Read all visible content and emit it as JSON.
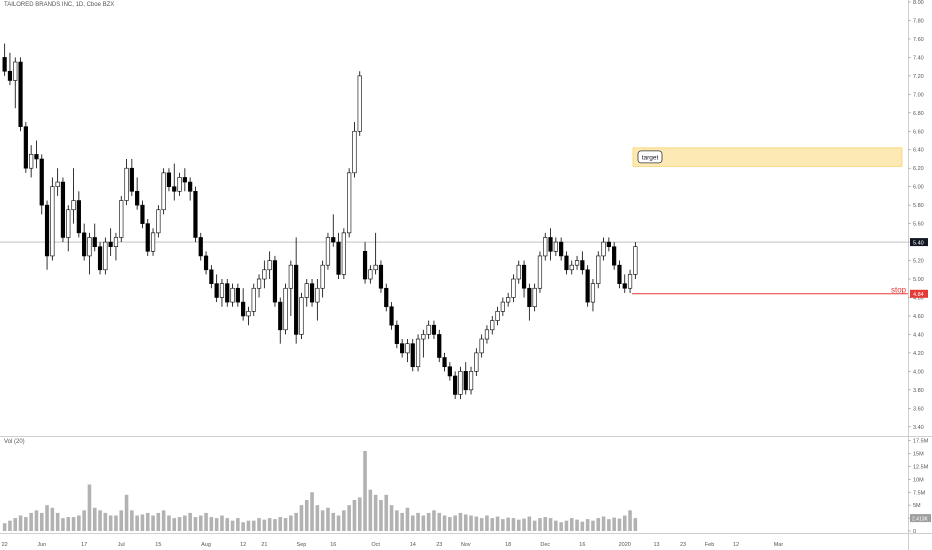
{
  "header": {
    "title": "TAILORED BRANDS INC, 1D, Cboe BZX",
    "volume_label": "Vol (20)"
  },
  "annotations": {
    "target_label": "target",
    "stop_label": "stop",
    "current_price_label": "5.40",
    "stop_price_label": "4.84",
    "current_volume_label": "2.413K"
  },
  "colors": {
    "up_candle": "#ffffff",
    "down_candle": "#000000",
    "candle_outline": "#000000",
    "volume_bar": "#b2b2b2",
    "target_zone_fill": "#fde9b3",
    "target_zone_border": "#f5c542",
    "stop_line": "#e53935",
    "price_line": "#9e9e9e"
  },
  "chart_data": {
    "type": "candlestick",
    "title": "TAILORED BRANDS INC, 1D, Cboe BZX",
    "price_axis": {
      "ylim": [
        3.3,
        8.0
      ],
      "ticks": [
        "8.00",
        "7.80",
        "7.60",
        "7.40",
        "7.20",
        "7.00",
        "6.80",
        "6.60",
        "6.40",
        "6.20",
        "6.00",
        "5.80",
        "5.60",
        "5.40",
        "5.20",
        "5.00",
        "4.80",
        "4.60",
        "4.40",
        "4.20",
        "4.00",
        "3.80",
        "3.60",
        "3.40"
      ]
    },
    "volume_axis": {
      "ylim": [
        0,
        18
      ],
      "ticks": [
        "17.5M",
        "15M",
        "12.5M",
        "10M",
        "7.5M",
        "5M",
        "2.5M",
        "0"
      ],
      "tick_values": [
        17.5,
        15,
        12.5,
        10,
        7.5,
        5,
        2.5,
        0
      ]
    },
    "x_axis": {
      "labels": [
        "22",
        "Jun",
        "17",
        "Jul",
        "15",
        "Aug",
        "12",
        "21",
        "Sep",
        "16",
        "Oct",
        "14",
        "23",
        "Nov",
        "18",
        "Dec",
        "16",
        "2020",
        "13",
        "23",
        "Feb",
        "12",
        "Mar"
      ],
      "label_index": [
        0,
        7,
        15,
        22,
        29,
        38,
        45,
        49,
        56,
        62,
        70,
        77,
        82,
        87,
        95,
        102,
        109,
        117,
        123,
        128,
        133,
        138,
        146
      ]
    },
    "levels": {
      "current_price": 5.4,
      "stop": 4.84,
      "target_zone": [
        6.22,
        6.42
      ]
    },
    "ohlc": [
      [
        7.4,
        7.55,
        7.2,
        7.25
      ],
      [
        7.25,
        7.45,
        7.1,
        7.15
      ],
      [
        7.15,
        7.4,
        6.85,
        7.35
      ],
      [
        7.35,
        7.4,
        6.6,
        6.65
      ],
      [
        6.65,
        6.7,
        6.15,
        6.2
      ],
      [
        6.2,
        6.45,
        6.1,
        6.35
      ],
      [
        6.35,
        6.5,
        6.2,
        6.3
      ],
      [
        6.3,
        6.35,
        5.7,
        5.8
      ],
      [
        5.8,
        5.85,
        5.1,
        5.25
      ],
      [
        5.25,
        6.1,
        5.2,
        6.0
      ],
      [
        6.0,
        6.2,
        5.9,
        6.05
      ],
      [
        6.05,
        6.1,
        5.4,
        5.45
      ],
      [
        5.45,
        5.8,
        5.3,
        5.75
      ],
      [
        5.75,
        6.2,
        5.6,
        5.85
      ],
      [
        5.85,
        5.95,
        5.45,
        5.5
      ],
      [
        5.5,
        5.6,
        5.2,
        5.25
      ],
      [
        5.25,
        5.5,
        5.05,
        5.45
      ],
      [
        5.45,
        5.6,
        5.3,
        5.35
      ],
      [
        5.35,
        5.4,
        5.05,
        5.1
      ],
      [
        5.1,
        5.45,
        5.05,
        5.4
      ],
      [
        5.4,
        5.55,
        5.25,
        5.35
      ],
      [
        5.35,
        5.5,
        5.2,
        5.45
      ],
      [
        5.45,
        5.9,
        5.4,
        5.85
      ],
      [
        5.85,
        6.3,
        5.8,
        6.2
      ],
      [
        6.2,
        6.3,
        5.9,
        5.95
      ],
      [
        5.95,
        6.1,
        5.75,
        5.8
      ],
      [
        5.8,
        5.85,
        5.55,
        5.6
      ],
      [
        5.6,
        5.65,
        5.25,
        5.3
      ],
      [
        5.3,
        5.55,
        5.25,
        5.5
      ],
      [
        5.5,
        5.8,
        5.45,
        5.75
      ],
      [
        5.75,
        6.2,
        5.7,
        6.15
      ],
      [
        6.15,
        6.2,
        5.95,
        6.0
      ],
      [
        6.0,
        6.25,
        5.85,
        5.95
      ],
      [
        5.95,
        6.15,
        5.9,
        6.1
      ],
      [
        6.1,
        6.2,
        5.95,
        6.05
      ],
      [
        6.05,
        6.1,
        5.85,
        5.95
      ],
      [
        5.95,
        6.0,
        5.4,
        5.45
      ],
      [
        5.45,
        5.5,
        5.2,
        5.25
      ],
      [
        5.25,
        5.3,
        5.05,
        5.1
      ],
      [
        5.1,
        5.15,
        4.9,
        4.95
      ],
      [
        4.95,
        5.05,
        4.75,
        4.8
      ],
      [
        4.8,
        5.0,
        4.7,
        4.95
      ],
      [
        4.95,
        5.0,
        4.7,
        4.75
      ],
      [
        4.75,
        4.95,
        4.7,
        4.9
      ],
      [
        4.9,
        4.95,
        4.7,
        4.75
      ],
      [
        4.75,
        4.9,
        4.55,
        4.6
      ],
      [
        4.6,
        4.7,
        4.5,
        4.65
      ],
      [
        4.65,
        4.95,
        4.6,
        4.9
      ],
      [
        4.9,
        5.05,
        4.8,
        5.0
      ],
      [
        5.0,
        5.2,
        4.9,
        5.1
      ],
      [
        5.1,
        5.3,
        5.0,
        5.2
      ],
      [
        5.2,
        5.25,
        4.7,
        4.75
      ],
      [
        4.75,
        4.8,
        4.3,
        4.45
      ],
      [
        4.45,
        4.95,
        4.4,
        4.9
      ],
      [
        4.9,
        5.2,
        4.6,
        5.15
      ],
      [
        5.15,
        5.45,
        4.3,
        4.4
      ],
      [
        4.4,
        4.85,
        4.35,
        4.8
      ],
      [
        4.8,
        5.0,
        4.7,
        4.95
      ],
      [
        4.95,
        5.0,
        4.7,
        4.75
      ],
      [
        4.75,
        5.0,
        4.55,
        4.9
      ],
      [
        4.9,
        5.2,
        4.8,
        5.15
      ],
      [
        5.15,
        5.5,
        5.1,
        5.45
      ],
      [
        5.45,
        5.7,
        5.35,
        5.4
      ],
      [
        5.4,
        5.5,
        5.0,
        5.05
      ],
      [
        5.05,
        5.55,
        5.0,
        5.5
      ],
      [
        5.5,
        6.2,
        5.45,
        6.15
      ],
      [
        6.15,
        6.7,
        6.1,
        6.6
      ],
      [
        6.6,
        7.25,
        6.55,
        7.2
      ],
      [
        5.3,
        5.4,
        4.95,
        5.0
      ],
      [
        5.0,
        5.15,
        4.95,
        5.1
      ],
      [
        5.1,
        5.5,
        5.05,
        5.15
      ],
      [
        5.15,
        5.2,
        4.85,
        4.9
      ],
      [
        4.9,
        4.95,
        4.65,
        4.7
      ],
      [
        4.7,
        4.75,
        4.45,
        4.5
      ],
      [
        4.5,
        4.55,
        4.25,
        4.3
      ],
      [
        4.3,
        4.35,
        4.15,
        4.2
      ],
      [
        4.2,
        4.35,
        4.1,
        4.3
      ],
      [
        4.3,
        4.35,
        4.0,
        4.05
      ],
      [
        4.05,
        4.4,
        4.0,
        4.35
      ],
      [
        4.35,
        4.45,
        4.15,
        4.4
      ],
      [
        4.4,
        4.55,
        4.35,
        4.5
      ],
      [
        4.5,
        4.55,
        4.35,
        4.4
      ],
      [
        4.4,
        4.45,
        4.1,
        4.15
      ],
      [
        4.15,
        4.2,
        4.0,
        4.05
      ],
      [
        4.05,
        4.1,
        3.9,
        3.95
      ],
      [
        3.95,
        4.0,
        3.7,
        3.75
      ],
      [
        3.75,
        4.05,
        3.7,
        4.0
      ],
      [
        4.0,
        4.1,
        3.75,
        3.8
      ],
      [
        3.8,
        4.05,
        3.75,
        4.0
      ],
      [
        4.0,
        4.25,
        3.95,
        4.2
      ],
      [
        4.2,
        4.4,
        4.15,
        4.35
      ],
      [
        4.35,
        4.5,
        4.3,
        4.45
      ],
      [
        4.45,
        4.6,
        4.4,
        4.55
      ],
      [
        4.55,
        4.7,
        4.5,
        4.65
      ],
      [
        4.65,
        4.8,
        4.6,
        4.75
      ],
      [
        4.75,
        4.85,
        4.7,
        4.8
      ],
      [
        4.8,
        5.05,
        4.75,
        5.0
      ],
      [
        5.0,
        5.2,
        4.95,
        5.15
      ],
      [
        5.15,
        5.2,
        4.8,
        4.9
      ],
      [
        4.9,
        4.95,
        4.55,
        4.7
      ],
      [
        4.7,
        4.95,
        4.65,
        4.9
      ],
      [
        4.9,
        5.3,
        4.85,
        5.25
      ],
      [
        5.25,
        5.5,
        5.2,
        5.45
      ],
      [
        5.45,
        5.55,
        5.2,
        5.3
      ],
      [
        5.3,
        5.45,
        5.25,
        5.4
      ],
      [
        5.4,
        5.45,
        5.2,
        5.25
      ],
      [
        5.25,
        5.3,
        5.05,
        5.1
      ],
      [
        5.1,
        5.2,
        5.05,
        5.15
      ],
      [
        5.15,
        5.25,
        5.1,
        5.2
      ],
      [
        5.2,
        5.3,
        5.05,
        5.1
      ],
      [
        5.1,
        5.15,
        4.7,
        4.75
      ],
      [
        4.75,
        5.0,
        4.65,
        4.95
      ],
      [
        4.95,
        5.3,
        4.9,
        5.25
      ],
      [
        5.25,
        5.45,
        5.2,
        5.4
      ],
      [
        5.4,
        5.45,
        5.3,
        5.35
      ],
      [
        5.35,
        5.4,
        5.1,
        5.15
      ],
      [
        5.15,
        5.2,
        4.9,
        4.95
      ],
      [
        4.95,
        5.05,
        4.85,
        4.9
      ],
      [
        4.9,
        5.1,
        4.85,
        5.05
      ],
      [
        5.05,
        5.4,
        5.0,
        5.35
      ]
    ],
    "volume_m": [
      1.5,
      2.0,
      2.5,
      3.0,
      2.7,
      3.5,
      4.0,
      3.5,
      5.0,
      4.5,
      3.5,
      2.5,
      2.7,
      2.7,
      3.0,
      4.0,
      9.0,
      4.5,
      4.0,
      3.5,
      3.0,
      3.0,
      4.0,
      7.0,
      4.0,
      3.0,
      3.2,
      3.5,
      3.0,
      3.5,
      4.0,
      3.0,
      2.5,
      2.7,
      3.0,
      3.5,
      2.7,
      3.0,
      3.5,
      2.7,
      2.5,
      3.0,
      2.5,
      2.0,
      2.5,
      1.7,
      2.0,
      2.0,
      2.5,
      2.2,
      2.5,
      2.3,
      2.7,
      2.5,
      3.0,
      3.5,
      5.0,
      6.0,
      7.5,
      5.0,
      4.0,
      4.5,
      3.5,
      3.0,
      4.0,
      5.0,
      6.0,
      6.5,
      15.5,
      8.0,
      7.0,
      6.0,
      7.0,
      5.0,
      4.0,
      3.5,
      4.5,
      3.0,
      3.5,
      3.0,
      3.5,
      4.0,
      3.5,
      3.0,
      2.7,
      3.0,
      3.5,
      3.2,
      3.0,
      2.8,
      2.5,
      3.0,
      2.5,
      2.8,
      2.3,
      2.6,
      2.5,
      2.2,
      2.4,
      2.8,
      2.0,
      2.5,
      2.7,
      2.5,
      2.0,
      1.7,
      2.0,
      2.5,
      2.2,
      1.8,
      2.3,
      2.0,
      2.5,
      2.8,
      2.3,
      2.6,
      2.4,
      3.0,
      4.0,
      2.5
    ]
  }
}
